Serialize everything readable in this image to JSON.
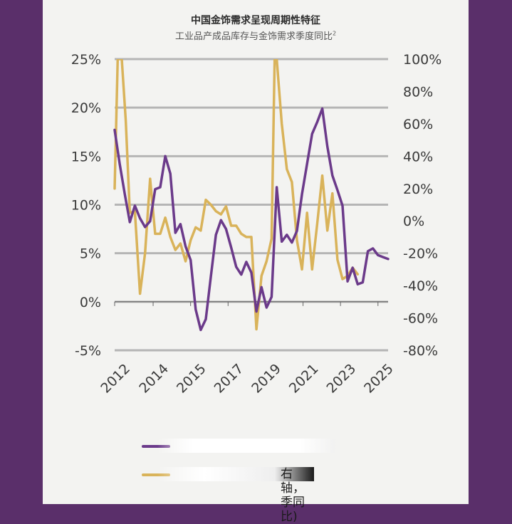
{
  "header": {
    "title": "中国金饰需求呈现周期性特征",
    "subtitle": "工业品产成品库存与金饰需求季度同比",
    "subtitle_sup": "2"
  },
  "legend": {
    "gold_label_visible": "右轴，季同比)"
  },
  "colors": {
    "purple": "#6b3a8a",
    "gold": "#d9b35a",
    "grid": "#b5b5b5",
    "axis_text": "#3a3a3a"
  },
  "chart_data": {
    "type": "line",
    "x_ticks": [
      "2012",
      "2014",
      "2015",
      "2017",
      "2019",
      "2021",
      "2023",
      "2025"
    ],
    "y_left_ticks": [
      "25%",
      "20%",
      "15%",
      "10%",
      "5%",
      "0%",
      "-5%"
    ],
    "y_right_ticks": [
      "100%",
      "80%",
      "60%",
      "40%",
      "20%",
      "0%",
      "-20%",
      "-40%",
      "-60%",
      "-80%"
    ],
    "y_left_range": [
      -5,
      25
    ],
    "y_right_range": [
      -80,
      100
    ],
    "series": [
      {
        "axis": "left",
        "color": "#6b3a8a",
        "x": [
          2012.0,
          2012.25,
          2012.5,
          2012.75,
          2013.0,
          2013.25,
          2013.5,
          2013.75,
          2014.0,
          2014.25,
          2014.5,
          2014.75,
          2015.0,
          2015.25,
          2015.5,
          2015.75,
          2016.0,
          2016.25,
          2016.5,
          2016.75,
          2017.0,
          2017.25,
          2017.5,
          2017.75,
          2018.0,
          2018.25,
          2018.5,
          2018.75,
          2019.0,
          2019.25,
          2019.5,
          2019.75,
          2020.0,
          2020.25,
          2020.5,
          2020.75,
          2021.0,
          2021.25,
          2021.5,
          2021.75,
          2022.0,
          2022.25,
          2022.5,
          2022.75,
          2023.0,
          2023.25,
          2023.5,
          2023.75,
          2024.0,
          2024.25,
          2024.5,
          2024.75,
          2025.0,
          2025.25,
          2025.5
        ],
        "values": [
          17.7,
          14.2,
          11.1,
          8.2,
          9.9,
          8.6,
          7.7,
          8.3,
          11.6,
          11.8,
          15.0,
          13.2,
          7.1,
          8.0,
          5.7,
          4.3,
          -0.8,
          -2.9,
          -1.8,
          2.6,
          6.9,
          8.4,
          7.5,
          5.6,
          3.6,
          2.8,
          4.1,
          3.0,
          -1.0,
          1.5,
          -0.6,
          0.5,
          11.8,
          6.2,
          6.9,
          6.1,
          7.3,
          11.1,
          14.2,
          17.3,
          18.5,
          19.9,
          16.0,
          13.0,
          11.5,
          9.9,
          2.1,
          3.5,
          1.8,
          2.0,
          5.2,
          5.5,
          4.8,
          4.6,
          4.4
        ]
      },
      {
        "axis": "right",
        "color": "#d9b35a",
        "x": [
          2012.0,
          2012.15,
          2012.35,
          2012.55,
          2012.75,
          2013.0,
          2013.25,
          2013.5,
          2013.75,
          2014.0,
          2014.25,
          2014.5,
          2014.75,
          2015.0,
          2015.25,
          2015.5,
          2015.75,
          2016.0,
          2016.25,
          2016.5,
          2016.75,
          2017.0,
          2017.25,
          2017.5,
          2017.75,
          2018.0,
          2018.25,
          2018.5,
          2018.75,
          2019.0,
          2019.25,
          2019.5,
          2019.75,
          2019.9,
          2020.0,
          2020.25,
          2020.5,
          2020.75,
          2021.0,
          2021.25,
          2021.5,
          2021.75,
          2022.0,
          2022.25,
          2022.5,
          2022.75,
          2023.0,
          2023.25,
          2023.5,
          2023.75,
          2024.0
        ],
        "values": [
          20,
          100,
          100,
          62,
          5,
          6,
          -45,
          -20,
          26,
          -8,
          -8,
          2,
          -10,
          -18,
          -14,
          -25,
          -12,
          -4,
          -6,
          13,
          10,
          6,
          4,
          9,
          -3,
          -3,
          -8,
          -10,
          -10,
          -67,
          -34,
          -25,
          -11,
          100,
          100,
          60,
          32,
          24,
          -12,
          -30,
          5,
          -30,
          -2,
          28,
          -6,
          17,
          -24,
          -36,
          -34,
          -29,
          -33
        ]
      }
    ]
  }
}
